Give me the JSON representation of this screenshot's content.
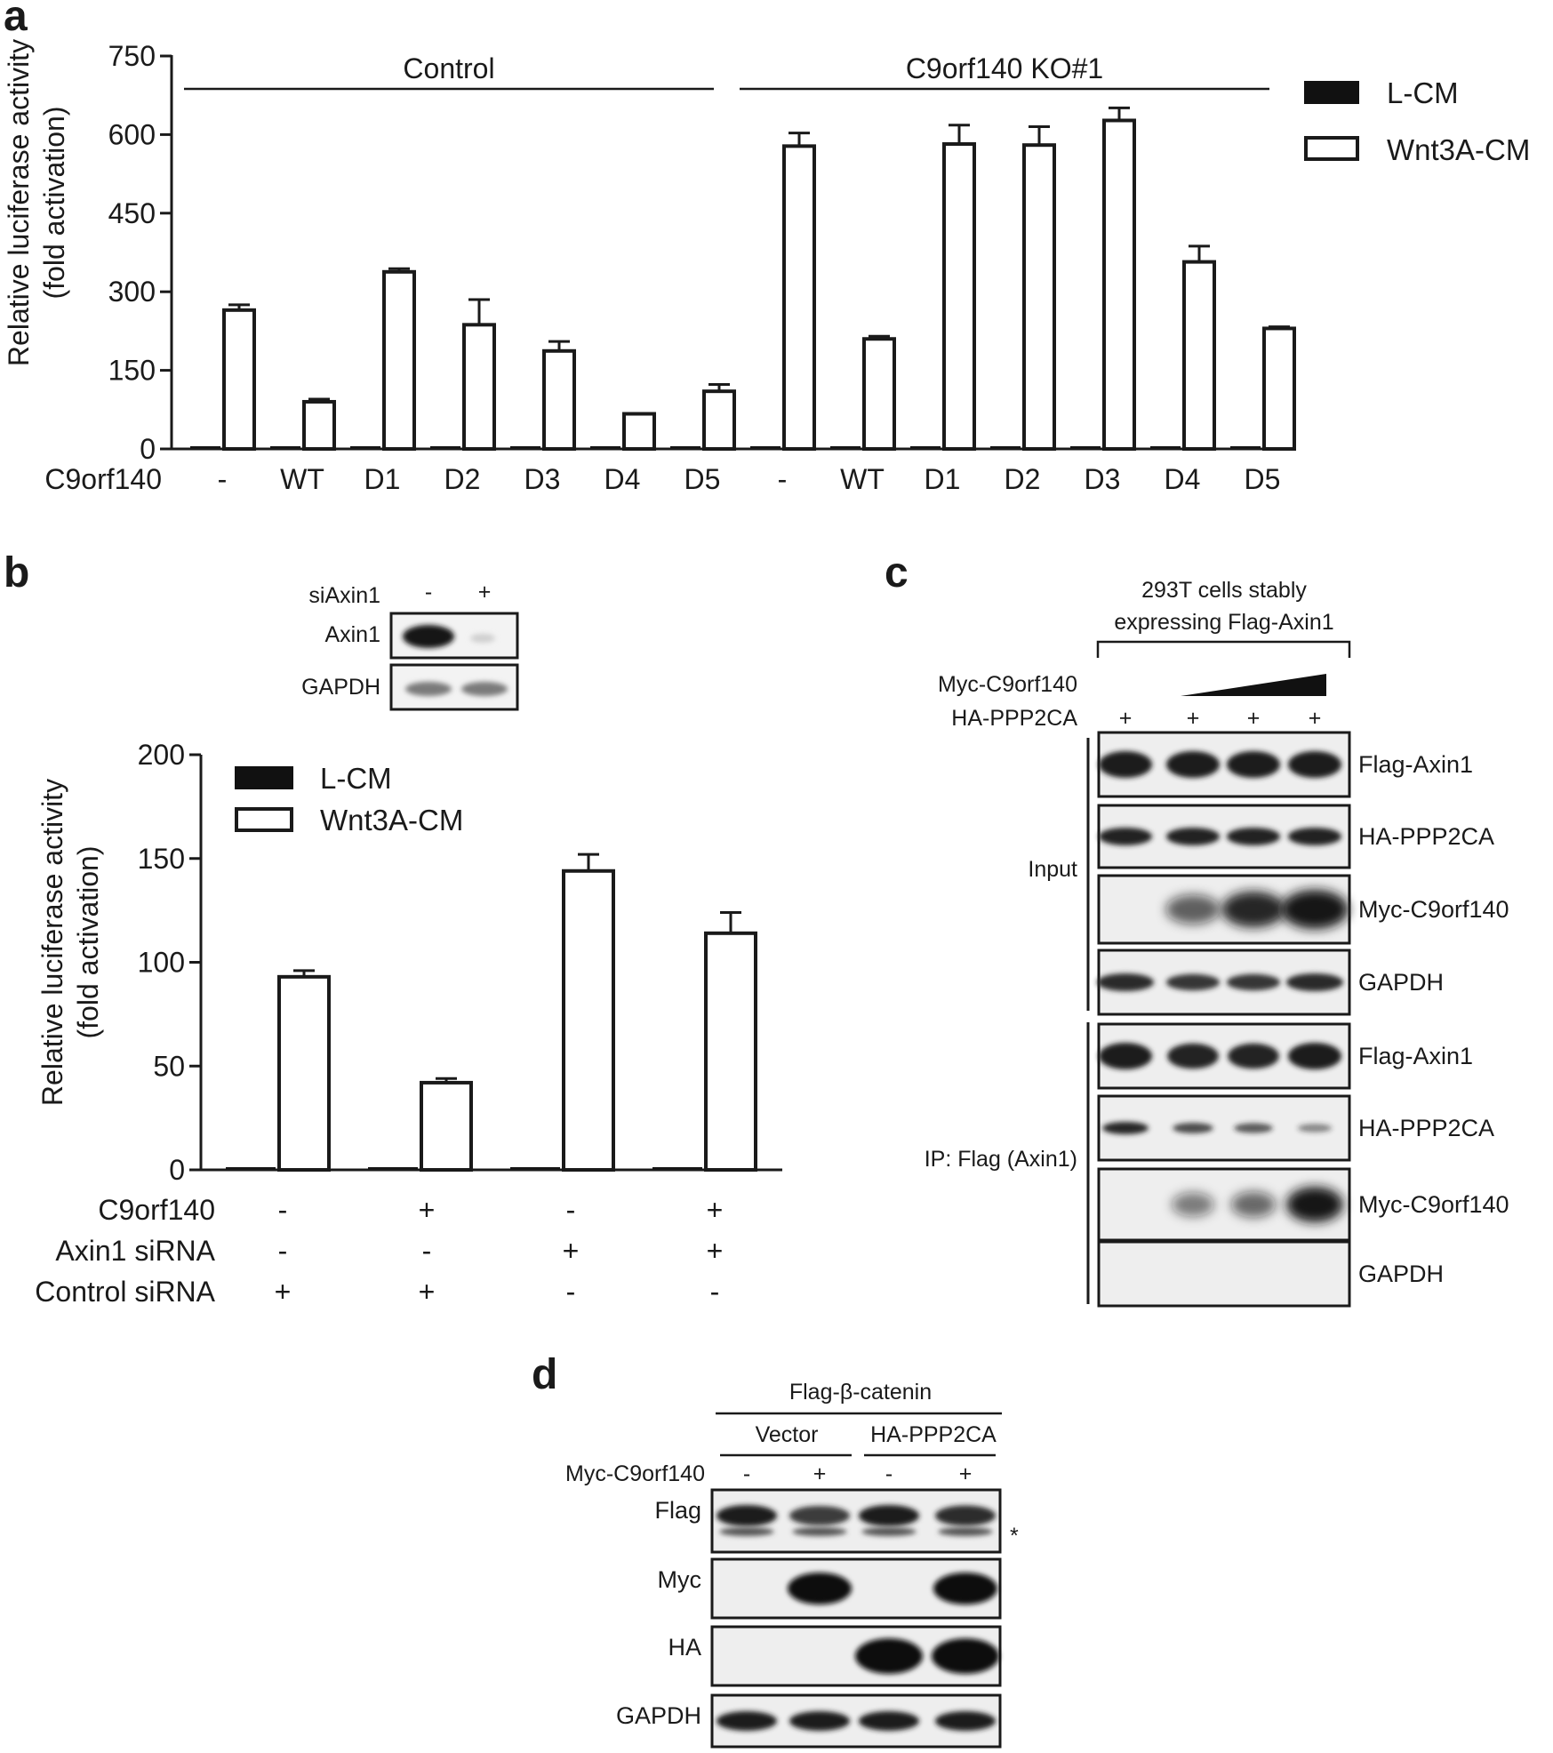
{
  "panels": {
    "a": "a",
    "b": "b",
    "c": "c",
    "d": "d"
  },
  "chart_data": [
    {
      "panel": "a",
      "type": "bar",
      "ylabel": "Relative luciferase activity",
      "ylabel2": "(fold activation)",
      "xlabel": "C9orf140",
      "yticks": [
        "0",
        "150",
        "300",
        "450",
        "600",
        "750"
      ],
      "ylim": [
        0,
        750
      ],
      "groups": [
        "Control",
        "C9orf140 KO#1"
      ],
      "categories": [
        "-",
        "WT",
        "D1",
        "D2",
        "D3",
        "D4",
        "D5",
        "-",
        "WT",
        "D1",
        "D2",
        "D3",
        "D4",
        "D5"
      ],
      "legend": [
        "L-CM",
        "Wnt3A-CM"
      ],
      "legend_position": "top-right (outside plot)",
      "series": [
        {
          "name": "L-CM",
          "color": "#111111",
          "values": [
            1,
            1,
            1,
            1,
            1,
            1,
            1,
            1,
            2,
            3,
            3,
            2,
            2,
            1
          ],
          "errors": [
            0,
            0,
            0,
            0,
            0,
            0,
            0,
            0,
            0,
            0,
            0,
            0,
            0,
            0
          ]
        },
        {
          "name": "Wnt3A-CM",
          "color": "#ffffff",
          "values": [
            265,
            90,
            338,
            237,
            187,
            67,
            110,
            578,
            210,
            582,
            580,
            627,
            357,
            230
          ],
          "errors": [
            10,
            5,
            6,
            48,
            18,
            0,
            13,
            25,
            5,
            36,
            35,
            24,
            30,
            3
          ]
        }
      ]
    },
    {
      "panel": "b",
      "type": "bar",
      "ylabel": "Relative luciferase activity",
      "ylabel2": "(fold activation)",
      "yticks": [
        "0",
        "50",
        "100",
        "150",
        "200"
      ],
      "ylim": [
        0,
        200
      ],
      "legend": [
        "L-CM",
        "Wnt3A-CM"
      ],
      "legend_position": "top-left (inside plot)",
      "series": [
        {
          "name": "L-CM",
          "color": "#111111",
          "values": [
            1,
            1,
            1,
            1
          ],
          "errors": [
            0,
            0,
            0,
            0
          ]
        },
        {
          "name": "Wnt3A-CM",
          "color": "#ffffff",
          "values": [
            93,
            42,
            144,
            114
          ],
          "errors": [
            3,
            2,
            8,
            10
          ]
        }
      ],
      "conditions": [
        {
          "label": "C9orf140",
          "values": [
            "-",
            "+",
            "-",
            "+"
          ]
        },
        {
          "label": "Axin1 siRNA",
          "values": [
            "-",
            "-",
            "+",
            "+"
          ]
        },
        {
          "label": "Control siRNA",
          "values": [
            "+",
            "+",
            "-",
            "-"
          ]
        }
      ]
    }
  ],
  "panel_b_inset": {
    "header": "siAxin1",
    "lanes": [
      "-",
      "+"
    ],
    "rows": [
      "Axin1",
      "GAPDH"
    ]
  },
  "panel_c": {
    "header1": "293T cells stably",
    "header2": "expressing Flag-Axin1",
    "treat_myc": "Myc-C9orf140",
    "treat_ha": "HA-PPP2CA",
    "ha_lanes": [
      "+",
      "+",
      "+",
      "+"
    ],
    "section_input": "Input",
    "section_ip": "IP: Flag (Axin1)",
    "rows": [
      "Flag-Axin1",
      "HA-PPP2CA",
      "Myc-C9orf140",
      "GAPDH",
      "Flag-Axin1",
      "HA-PPP2CA",
      "Myc-C9orf140",
      "GAPDH"
    ]
  },
  "panel_d": {
    "header": "Flag-β-catenin",
    "group1": "Vector",
    "group2": "HA-PPP2CA",
    "treat": "Myc-C9orf140",
    "lanes": [
      "-",
      "+",
      "-",
      "+"
    ],
    "rows": [
      "Flag",
      "Myc",
      "HA",
      "GAPDH"
    ],
    "asterisk": "*"
  }
}
